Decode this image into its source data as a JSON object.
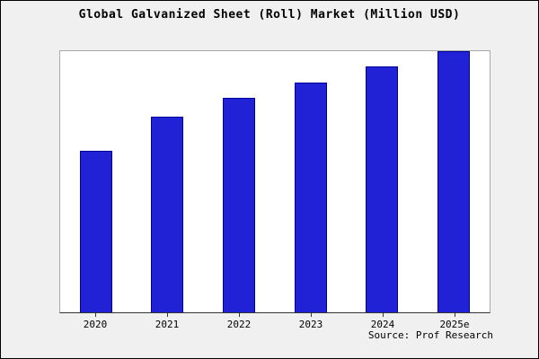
{
  "title": "Global Galvanized Sheet (Roll) Market (Million USD)",
  "source": "Source: Prof Research",
  "colors": {
    "bar_fill": "#2121d6",
    "bar_border": "#000099",
    "page_bg": "#f0f0f0",
    "plot_bg": "#ffffff",
    "plot_border": "#aaaaaa",
    "axis_color": "#333333"
  },
  "chart_data": {
    "type": "bar",
    "title": "Global Galvanized Sheet (Roll) Market (Million USD)",
    "categories": [
      "2020",
      "2021",
      "2022",
      "2023",
      "2024",
      "2025e"
    ],
    "values": [
      62,
      75,
      82,
      88,
      94,
      100
    ],
    "xlabel": "",
    "ylabel": "",
    "ylim": [
      0,
      100
    ],
    "grid": false,
    "legend": false,
    "y_tick_labels": [],
    "annotation": "Source: Prof Research"
  }
}
